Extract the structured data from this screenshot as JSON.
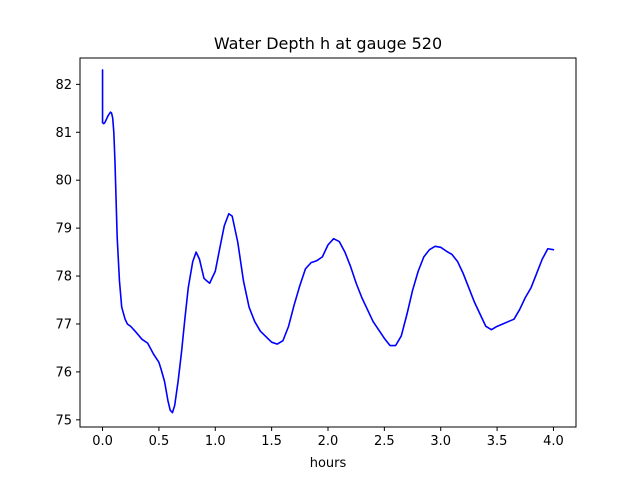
{
  "chart_data": {
    "type": "line",
    "title": "Water Depth h at gauge 520",
    "xlabel": "hours",
    "ylabel": "",
    "xlim": [
      -0.2,
      4.2
    ],
    "ylim": [
      74.85,
      82.55
    ],
    "xticks": [
      0.0,
      0.5,
      1.0,
      1.5,
      2.0,
      2.5,
      3.0,
      3.5,
      4.0
    ],
    "xtick_labels": [
      "0.0",
      "0.5",
      "1.0",
      "1.5",
      "2.0",
      "2.5",
      "3.0",
      "3.5",
      "4.0"
    ],
    "yticks": [
      75,
      76,
      77,
      78,
      79,
      80,
      81,
      82
    ],
    "ytick_labels": [
      "75",
      "76",
      "77",
      "78",
      "79",
      "80",
      "81",
      "82"
    ],
    "grid": false,
    "series": [
      {
        "color": "#0000ff",
        "x": [
          0.0,
          0.0,
          0.0,
          0.01,
          0.02,
          0.03,
          0.05,
          0.07,
          0.08,
          0.09,
          0.1,
          0.11,
          0.12,
          0.13,
          0.15,
          0.17,
          0.2,
          0.22,
          0.25,
          0.3,
          0.35,
          0.4,
          0.45,
          0.5,
          0.52,
          0.55,
          0.58,
          0.6,
          0.62,
          0.64,
          0.67,
          0.7,
          0.73,
          0.76,
          0.8,
          0.83,
          0.86,
          0.9,
          0.95,
          1.0,
          1.05,
          1.08,
          1.12,
          1.15,
          1.2,
          1.25,
          1.3,
          1.35,
          1.4,
          1.5,
          1.55,
          1.6,
          1.65,
          1.7,
          1.75,
          1.8,
          1.85,
          1.9,
          1.95,
          2.0,
          2.05,
          2.1,
          2.15,
          2.2,
          2.25,
          2.3,
          2.35,
          2.4,
          2.5,
          2.55,
          2.6,
          2.65,
          2.7,
          2.75,
          2.8,
          2.85,
          2.9,
          2.95,
          3.0,
          3.05,
          3.1,
          3.15,
          3.2,
          3.25,
          3.3,
          3.35,
          3.4,
          3.45,
          3.5,
          3.55,
          3.6,
          3.65,
          3.7,
          3.75,
          3.8,
          3.85,
          3.9,
          3.95,
          4.0
        ],
        "values": [
          82.3,
          81.8,
          81.2,
          81.18,
          81.2,
          81.25,
          81.35,
          81.42,
          81.4,
          81.3,
          81.0,
          80.4,
          79.6,
          78.8,
          77.9,
          77.35,
          77.1,
          77.0,
          76.95,
          76.82,
          76.68,
          76.6,
          76.38,
          76.2,
          76.05,
          75.8,
          75.4,
          75.2,
          75.15,
          75.3,
          75.8,
          76.4,
          77.1,
          77.75,
          78.3,
          78.5,
          78.35,
          77.95,
          77.85,
          78.1,
          78.7,
          79.05,
          79.3,
          79.25,
          78.7,
          77.9,
          77.35,
          77.05,
          76.85,
          76.62,
          76.58,
          76.65,
          76.95,
          77.4,
          77.8,
          78.15,
          78.28,
          78.32,
          78.4,
          78.65,
          78.78,
          78.72,
          78.5,
          78.2,
          77.85,
          77.55,
          77.3,
          77.05,
          76.7,
          76.55,
          76.55,
          76.75,
          77.2,
          77.7,
          78.1,
          78.4,
          78.55,
          78.62,
          78.6,
          78.52,
          78.45,
          78.3,
          78.05,
          77.75,
          77.45,
          77.2,
          76.95,
          76.88,
          76.95,
          77.0,
          77.05,
          77.1,
          77.3,
          77.55,
          77.75,
          78.05,
          78.35,
          78.57,
          78.55
        ]
      }
    ]
  }
}
